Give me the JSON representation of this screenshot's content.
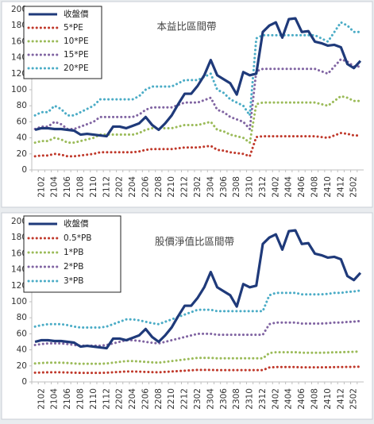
{
  "chart_data": [
    {
      "type": "line",
      "title": "本益比區間帶",
      "legend": "upper left",
      "grid": false,
      "ylim": [
        0,
        200
      ],
      "yticks": [
        0,
        20,
        40,
        60,
        80,
        100,
        120,
        140,
        160,
        180,
        200
      ],
      "categories": [
        null,
        "2102",
        null,
        "2104",
        null,
        "2106",
        null,
        "2108",
        null,
        "2110",
        null,
        "2112",
        null,
        "2202",
        null,
        "2204",
        null,
        "2206",
        null,
        "2208",
        null,
        "2210",
        null,
        "2212",
        null,
        "2302",
        null,
        "2304",
        null,
        "2306",
        null,
        "2308",
        null,
        "2310",
        null,
        "2312",
        null,
        "2402",
        null,
        "2404",
        null,
        "2406",
        null,
        "2408",
        null,
        "2410",
        null,
        "2412",
        null,
        "2502",
        null
      ],
      "series": [
        {
          "name": "收盤價",
          "color": "#1f3a7a",
          "style": "solid",
          "values": [
            50,
            52,
            52,
            51,
            51,
            50,
            49,
            44,
            45,
            44,
            43,
            42,
            54,
            54,
            52,
            55,
            58,
            66,
            56,
            50,
            58,
            68,
            82,
            95,
            95,
            105,
            118,
            137,
            118,
            113,
            108,
            94,
            122,
            118,
            120,
            172,
            180,
            184,
            165,
            188,
            189,
            172,
            173,
            160,
            158,
            155,
            156,
            153,
            132,
            127,
            136
          ]
        },
        {
          "name": "5*PE",
          "color": "#c0392b",
          "style": "dotted",
          "values": [
            17,
            18,
            18,
            20,
            19,
            17,
            17,
            18,
            19,
            20,
            22,
            22,
            22,
            22,
            22,
            22,
            23,
            25,
            26,
            26,
            26,
            26,
            27,
            28,
            28,
            28,
            29,
            30,
            25,
            24,
            22,
            21,
            20,
            17,
            41,
            42,
            42,
            42,
            42,
            42,
            42,
            42,
            42,
            42,
            41,
            40,
            43,
            46,
            45,
            43,
            43
          ]
        },
        {
          "name": "10*PE",
          "color": "#9bbb59",
          "style": "dotted",
          "values": [
            34,
            36,
            36,
            40,
            38,
            34,
            34,
            36,
            38,
            40,
            44,
            44,
            44,
            44,
            44,
            44,
            46,
            50,
            52,
            52,
            52,
            52,
            54,
            56,
            56,
            56,
            58,
            60,
            50,
            48,
            44,
            42,
            40,
            34,
            82,
            84,
            84,
            84,
            84,
            84,
            84,
            84,
            84,
            84,
            82,
            80,
            86,
            92,
            90,
            86,
            86
          ]
        },
        {
          "name": "15*PE",
          "color": "#8064a2",
          "style": "dotted",
          "values": [
            51,
            54,
            54,
            60,
            57,
            51,
            51,
            54,
            57,
            60,
            66,
            66,
            66,
            66,
            66,
            66,
            69,
            75,
            78,
            78,
            78,
            78,
            81,
            84,
            84,
            84,
            87,
            90,
            75,
            72,
            66,
            63,
            60,
            51,
            123,
            126,
            126,
            126,
            126,
            126,
            126,
            126,
            126,
            126,
            123,
            120,
            129,
            138,
            135,
            129,
            129
          ]
        },
        {
          "name": "20*PE",
          "color": "#4bacc6",
          "style": "dotted",
          "values": [
            68,
            72,
            72,
            80,
            76,
            68,
            68,
            72,
            76,
            80,
            88,
            88,
            88,
            88,
            88,
            88,
            92,
            100,
            104,
            104,
            104,
            104,
            108,
            112,
            112,
            112,
            116,
            120,
            100,
            96,
            88,
            84,
            80,
            68,
            164,
            168,
            168,
            168,
            168,
            168,
            168,
            168,
            168,
            168,
            164,
            160,
            172,
            184,
            180,
            172,
            172
          ]
        }
      ]
    },
    {
      "type": "line",
      "title": "股價淨值比區間帶",
      "legend": "upper left",
      "grid": false,
      "ylim": [
        0,
        200
      ],
      "yticks": [
        0,
        20,
        40,
        60,
        80,
        100,
        120,
        140,
        160,
        180,
        200
      ],
      "categories": [
        null,
        "2102",
        null,
        "2104",
        null,
        "2106",
        null,
        "2108",
        null,
        "2110",
        null,
        "2112",
        null,
        "2202",
        null,
        "2204",
        null,
        "2206",
        null,
        "2208",
        null,
        "2210",
        null,
        "2212",
        null,
        "2302",
        null,
        "2304",
        null,
        "2306",
        null,
        "2308",
        null,
        "2310",
        null,
        "2312",
        null,
        "2402",
        null,
        "2404",
        null,
        "2406",
        null,
        "2408",
        null,
        "2410",
        null,
        "2412",
        null,
        "2502",
        null
      ],
      "series": [
        {
          "name": "收盤價",
          "color": "#1f3a7a",
          "style": "solid",
          "values": [
            50,
            52,
            52,
            51,
            51,
            50,
            49,
            44,
            45,
            44,
            43,
            42,
            54,
            54,
            52,
            55,
            58,
            66,
            56,
            50,
            58,
            68,
            82,
            95,
            95,
            105,
            118,
            137,
            118,
            113,
            108,
            94,
            122,
            118,
            120,
            172,
            180,
            184,
            165,
            188,
            189,
            172,
            173,
            160,
            158,
            155,
            156,
            153,
            132,
            127,
            136
          ]
        },
        {
          "name": "0.5*PB",
          "color": "#c0392b",
          "style": "dotted",
          "values": [
            11.5,
            11.8,
            12,
            12,
            12,
            11.8,
            11.5,
            11.3,
            11.3,
            11.3,
            11.3,
            11.5,
            12,
            12.5,
            13,
            13,
            12.8,
            12.5,
            12.2,
            12,
            12.5,
            13,
            13.5,
            14,
            14.5,
            15,
            15,
            15,
            14.7,
            14.7,
            14.7,
            14.7,
            14.7,
            14.7,
            14.7,
            14.7,
            18,
            18.5,
            18.5,
            18.5,
            18.5,
            18.2,
            18.2,
            18.2,
            18.2,
            18.3,
            18.5,
            18.5,
            18.7,
            18.8,
            19
          ]
        },
        {
          "name": "1*PB",
          "color": "#9bbb59",
          "style": "dotted",
          "values": [
            23,
            23.6,
            24,
            24,
            24,
            23.6,
            23,
            22.6,
            22.6,
            22.6,
            22.6,
            23,
            24,
            25,
            26,
            26,
            25.6,
            25,
            24.4,
            24,
            25,
            26,
            27,
            28,
            29,
            30,
            30,
            30,
            29.4,
            29.4,
            29.4,
            29.4,
            29.4,
            29.4,
            29.4,
            29.4,
            36,
            37,
            37,
            37,
            37,
            36.4,
            36.4,
            36.4,
            36.4,
            36.6,
            37,
            37,
            37.4,
            37.6,
            38
          ]
        },
        {
          "name": "2*PB",
          "color": "#8064a2",
          "style": "dotted",
          "values": [
            46,
            47.2,
            48,
            48,
            48,
            47.2,
            46,
            45.2,
            45.2,
            45.2,
            45.2,
            46,
            48,
            50,
            52,
            52,
            51.2,
            50,
            48.8,
            48,
            50,
            52,
            54,
            56,
            58,
            60,
            60,
            60,
            58.8,
            58.8,
            58.8,
            58.8,
            58.8,
            58.8,
            58.8,
            58.8,
            72,
            74,
            74,
            74,
            74,
            72.8,
            72.8,
            72.8,
            72.8,
            73.2,
            74,
            74,
            74.8,
            75.2,
            76
          ]
        },
        {
          "name": "3*PB",
          "color": "#4bacc6",
          "style": "dotted",
          "values": [
            69,
            70.8,
            72,
            72,
            72,
            70.8,
            69,
            67.8,
            67.8,
            67.8,
            67.8,
            69,
            72,
            75,
            78,
            78,
            76.8,
            75,
            73.2,
            72,
            75,
            78,
            81,
            84,
            87,
            90,
            90,
            90,
            88.2,
            88.2,
            88.2,
            88.2,
            88.2,
            88.2,
            88.2,
            88.2,
            108,
            111,
            111,
            111,
            111,
            109.2,
            109.2,
            109.2,
            109.2,
            109.8,
            111,
            111,
            112.2,
            112.8,
            114
          ]
        }
      ]
    }
  ]
}
